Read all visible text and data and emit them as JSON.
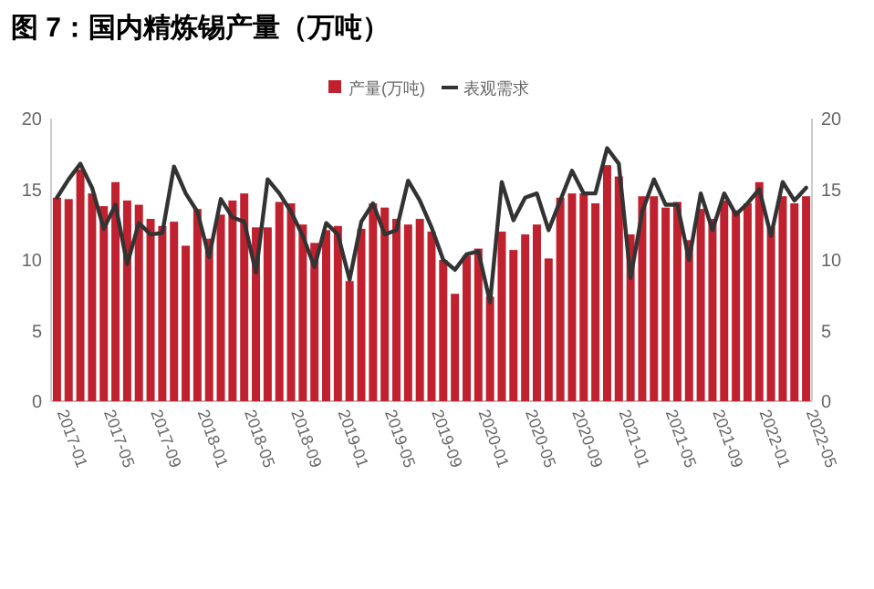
{
  "chart_data": {
    "type": "bar",
    "title": "图 7：国内精炼锡产量（万吨）",
    "categories": [
      "2017-01",
      null,
      null,
      null,
      "2017-05",
      null,
      null,
      null,
      "2017-09",
      null,
      null,
      null,
      "2018-01",
      null,
      null,
      null,
      "2018-05",
      null,
      null,
      null,
      "2018-09",
      null,
      null,
      null,
      "2019-01",
      null,
      null,
      null,
      "2019-05",
      null,
      null,
      null,
      "2019-09",
      null,
      null,
      null,
      "2020-01",
      null,
      null,
      null,
      "2020-05",
      null,
      null,
      null,
      "2020-09",
      null,
      null,
      null,
      "2021-01",
      null,
      null,
      null,
      "2021-05",
      null,
      null,
      null,
      "2021-09",
      null,
      null,
      null,
      "2022-01",
      null,
      null,
      null,
      "2022-05"
    ],
    "series": [
      {
        "name": "产量(万吨)",
        "color": "#c0212f",
        "values": [
          14.4,
          14.3,
          16.4,
          14.7,
          13.8,
          15.5,
          14.2,
          13.9,
          12.9,
          12.4,
          12.7,
          11.0,
          13.6,
          11.5,
          13.2,
          14.2,
          14.7,
          12.3,
          12.3,
          14.1,
          14.0,
          12.5,
          11.2,
          12.1,
          12.4,
          8.5,
          12.2,
          14.0,
          13.7,
          12.9,
          12.5,
          12.9,
          12.0,
          10.0,
          7.6,
          10.3,
          10.8,
          7.4,
          12.0,
          10.7,
          11.8,
          12.5,
          10.1,
          14.4,
          14.7,
          14.7,
          14.0,
          16.7,
          15.9,
          11.8,
          14.5,
          14.5,
          13.7,
          14.1,
          11.4,
          13.6,
          12.9,
          14.2,
          13.5,
          14.0,
          15.5,
          12.3,
          14.5,
          14.0,
          14.5
        ]
      },
      {
        "name": "表观需求",
        "type": "line",
        "color": "#333333",
        "values": [
          14.4,
          15.7,
          16.8,
          15.1,
          12.2,
          13.9,
          9.7,
          12.6,
          11.8,
          11.9,
          16.6,
          14.7,
          13.4,
          10.2,
          14.3,
          13.0,
          12.7,
          9.1,
          15.7,
          14.7,
          13.4,
          11.7,
          9.5,
          12.6,
          11.8,
          8.6,
          12.7,
          14.0,
          11.8,
          12.1,
          15.6,
          14.2,
          12.3,
          10.0,
          9.3,
          10.4,
          10.6,
          7.0,
          15.5,
          12.8,
          14.4,
          14.7,
          12.1,
          14.2,
          16.3,
          14.7,
          14.7,
          17.9,
          16.8,
          8.7,
          13.4,
          15.7,
          13.9,
          13.9,
          10.0,
          14.7,
          12.1,
          14.7,
          13.2,
          14.0,
          15.0,
          11.7,
          15.5,
          14.2,
          15.1
        ]
      }
    ],
    "ylim": [
      0,
      20
    ],
    "yticks": [
      0,
      5,
      10,
      15,
      20
    ],
    "y2lim": [
      0,
      20
    ],
    "y2ticks": [
      0,
      5,
      10,
      15,
      20
    ],
    "legend": "top",
    "grid": false
  }
}
